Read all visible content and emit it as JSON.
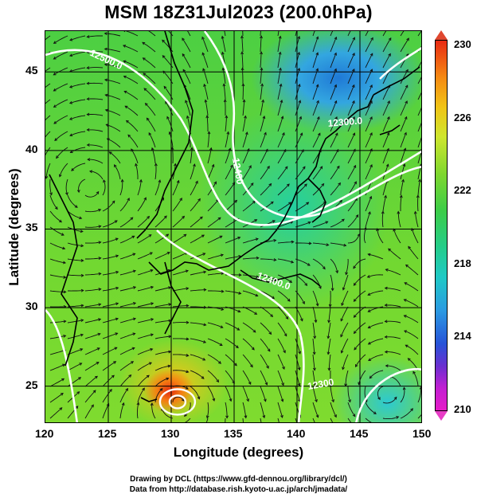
{
  "title": "MSM 18Z31Jul2023 (200.0hPa)",
  "xaxis": {
    "label": "Longitude (degrees)",
    "ticks": [
      "120",
      "125",
      "130",
      "135",
      "140",
      "145",
      "150"
    ],
    "range": [
      120,
      150
    ]
  },
  "yaxis": {
    "label": "Latitude  (degrees)",
    "ticks": [
      "45",
      "40",
      "35",
      "30",
      "25"
    ],
    "range": [
      22.6,
      47.6
    ]
  },
  "colorbar": {
    "ticks": [
      "230",
      "226",
      "222",
      "218",
      "214",
      "210"
    ],
    "range": [
      210,
      230
    ],
    "variable_units": ""
  },
  "contour_labels": [
    "12500.0",
    "12400",
    "12300.0",
    "12400.0",
    "12300"
  ],
  "footer": {
    "line1": "Drawing by DCL (https://www.gfd-dennou.org/library/dcl/)",
    "line2": "Data from http://database.rish.kyoto-u.ac.jp/arch/jmadata/"
  }
}
